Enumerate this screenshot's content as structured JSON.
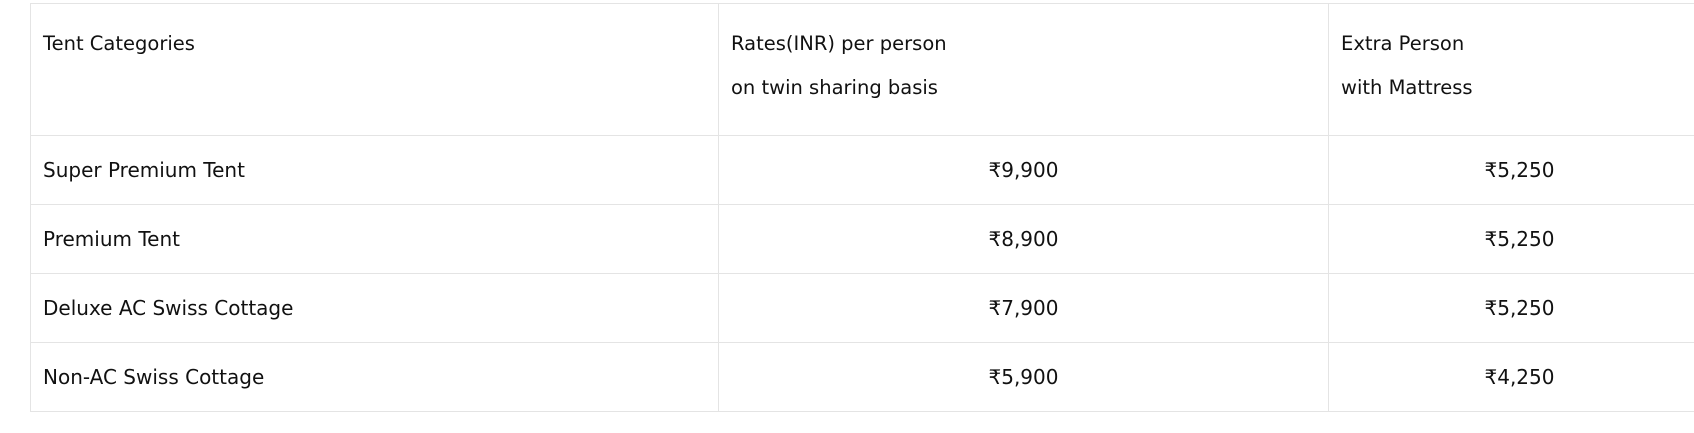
{
  "table": {
    "headers": [
      [
        "Tent Categories"
      ],
      [
        "Rates(INR) per person",
        "on twin sharing basis"
      ],
      [
        "Extra Person",
        "with Mattress"
      ]
    ],
    "rows": [
      {
        "category": "Super Premium Tent",
        "rate": "₹9,900",
        "extra": "₹5,250"
      },
      {
        "category": "Premium Tent",
        "rate": "₹8,900",
        "extra": "₹5,250"
      },
      {
        "category": "Deluxe AC Swiss Cottage",
        "rate": "₹7,900",
        "extra": "₹5,250"
      },
      {
        "category": "Non-AC Swiss Cottage",
        "rate": "₹5,900",
        "extra": "₹4,250"
      }
    ]
  }
}
